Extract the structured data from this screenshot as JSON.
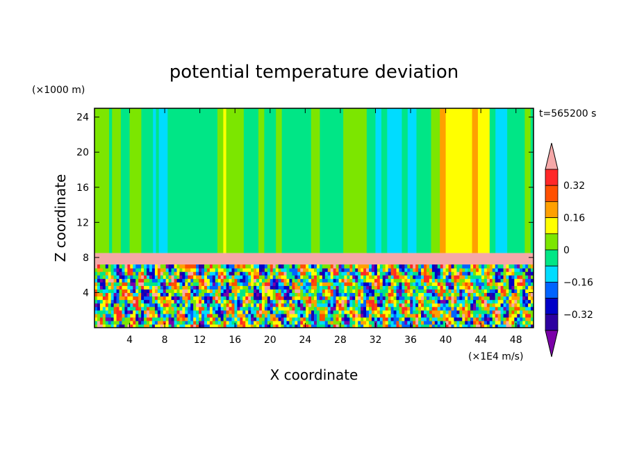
{
  "chart_data": {
    "type": "heatmap",
    "title": "potential temperature deviation",
    "time_label": "t=565200 s",
    "xlabel": "X coordinate",
    "ylabel": "Z coordinate",
    "x_unit_label": "(×1E4 m/s)",
    "y_unit_label": "(×1000 m)",
    "xlim": [
      0,
      50
    ],
    "ylim": [
      0,
      25
    ],
    "x_ticks": [
      4,
      8,
      12,
      16,
      20,
      24,
      28,
      32,
      36,
      40,
      44,
      48
    ],
    "y_ticks": [
      4,
      8,
      12,
      16,
      20,
      24
    ],
    "colorbar": {
      "levels": [
        -0.4,
        -0.32,
        -0.24,
        -0.16,
        -0.08,
        0,
        0.08,
        0.16,
        0.24,
        0.32,
        0.4
      ],
      "labels": [
        "0.32",
        "0.16",
        "0",
        "-0.16",
        "-0.32"
      ],
      "label_values": [
        0.32,
        0.16,
        0,
        -0.16,
        -0.32
      ],
      "colors": [
        "#7a00a8",
        "#2d00a0",
        "#0000c8",
        "#0064ff",
        "#00dcff",
        "#00e686",
        "#7ce600",
        "#ffff00",
        "#ffa000",
        "#ff5000",
        "#ff2828",
        "#f5a8a8"
      ],
      "extend": "both"
    },
    "regions": {
      "upper_layer_z": [
        8.5,
        25
      ],
      "inversion_layer_z": [
        7.2,
        8.5
      ],
      "lower_layer_z": [
        0,
        7.2
      ]
    }
  }
}
